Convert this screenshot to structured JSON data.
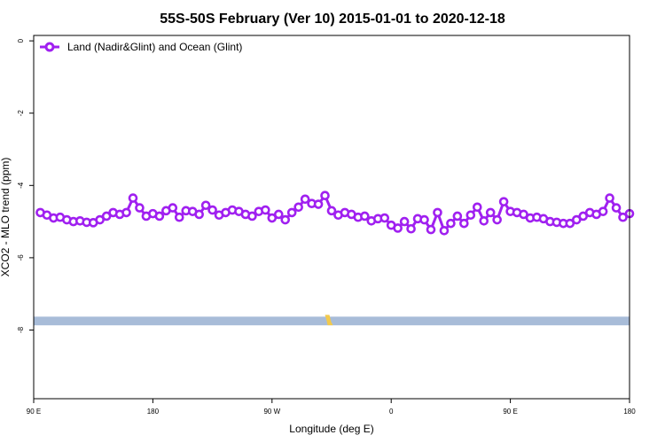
{
  "chart_data": {
    "type": "line",
    "title": "55S-50S February (Ver 10)   2015-01-01 to 2020-12-18",
    "xlabel": "Longitude (deg E)",
    "ylabel": "XCO2 - MLO trend (ppm)",
    "x_ticks": [
      {
        "value": 90,
        "label": "90 E"
      },
      {
        "value": 180,
        "label": "180"
      },
      {
        "value": 270,
        "label": "90 W"
      },
      {
        "value": 360,
        "label": "0"
      },
      {
        "value": 450,
        "label": "90 E"
      },
      {
        "value": 540,
        "label": "180"
      }
    ],
    "y_ticks": [
      {
        "value": 0,
        "label": "0"
      },
      {
        "value": -2,
        "label": "-2"
      },
      {
        "value": -4,
        "label": "-4"
      },
      {
        "value": -6,
        "label": "-6"
      },
      {
        "value": -8,
        "label": "-8"
      }
    ],
    "xlim": [
      90,
      540
    ],
    "ylim": [
      -9.9,
      0.15
    ],
    "grid": false,
    "legend_position": "top-left",
    "series": [
      {
        "name": "Land (Nadir&Glint) and Ocean (Glint)",
        "color": "#a020f0",
        "x": [
          95,
          100,
          105,
          110,
          115,
          120,
          125,
          130,
          135,
          140,
          145,
          150,
          155,
          160,
          165,
          170,
          175,
          180,
          185,
          190,
          195,
          200,
          205,
          210,
          215,
          220,
          225,
          230,
          235,
          240,
          245,
          250,
          255,
          260,
          265,
          270,
          275,
          280,
          285,
          290,
          295,
          300,
          305,
          310,
          315,
          320,
          325,
          330,
          335,
          340,
          345,
          350,
          355,
          360,
          365,
          370,
          375,
          380,
          385,
          390,
          395,
          400,
          405,
          410,
          415,
          420,
          425,
          430,
          435,
          440,
          445,
          450,
          455,
          460,
          465,
          470,
          475,
          480,
          485,
          490,
          495,
          500,
          505,
          510,
          515,
          520,
          525,
          530,
          535,
          540
        ],
        "y": [
          -4.75,
          -4.82,
          -4.9,
          -4.88,
          -4.95,
          -5.0,
          -4.98,
          -5.02,
          -5.03,
          -4.95,
          -4.85,
          -4.75,
          -4.8,
          -4.75,
          -4.35,
          -4.62,
          -4.85,
          -4.78,
          -4.85,
          -4.7,
          -4.62,
          -4.88,
          -4.7,
          -4.72,
          -4.8,
          -4.55,
          -4.68,
          -4.82,
          -4.75,
          -4.68,
          -4.72,
          -4.8,
          -4.85,
          -4.72,
          -4.68,
          -4.9,
          -4.8,
          -4.95,
          -4.75,
          -4.6,
          -4.38,
          -4.5,
          -4.52,
          -4.28,
          -4.7,
          -4.82,
          -4.75,
          -4.8,
          -4.88,
          -4.85,
          -4.98,
          -4.92,
          -4.9,
          -5.1,
          -5.18,
          -5.0,
          -5.2,
          -4.92,
          -4.95,
          -5.22,
          -4.75,
          -5.25,
          -5.05,
          -4.85,
          -5.05,
          -4.82,
          -4.6,
          -4.98,
          -4.75,
          -4.95,
          -4.45,
          -4.72,
          -4.75,
          -4.8,
          -4.9,
          -4.88,
          -4.92,
          -5.0,
          -5.02,
          -5.05,
          -5.05,
          -4.95,
          -4.85,
          -4.75,
          -4.8,
          -4.72,
          -4.35,
          -4.62,
          -4.88,
          -4.78
        ]
      }
    ],
    "band": {
      "y_center": -7.75,
      "y_halfwidth": 0.12,
      "color": "#a8bcd8",
      "highlight_color": "#f2c94c"
    }
  }
}
